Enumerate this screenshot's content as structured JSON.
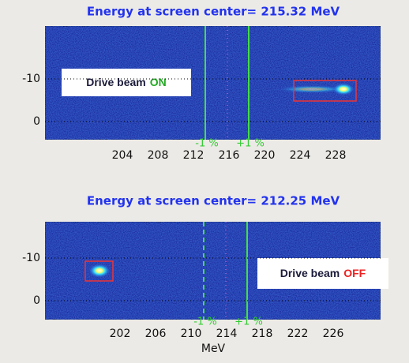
{
  "panels": [
    {
      "title": "Energy at screen center= 215.32 MeV",
      "yticks": [
        -10,
        0
      ],
      "xticks": [
        204,
        208,
        212,
        216,
        220,
        224,
        228
      ],
      "markers": [
        "-1 %",
        "+1 %"
      ],
      "label": {
        "text": "Drive beam",
        "status": "ON"
      }
    },
    {
      "title": "Energy at screen center= 212.25 MeV",
      "yticks": [
        -10,
        0
      ],
      "xticks": [
        202,
        206,
        210,
        214,
        218,
        222,
        226
      ],
      "markers": [
        "-1 %",
        "+1 %"
      ],
      "label": {
        "text": "Drive beam",
        "status": "OFF"
      },
      "xlabel": "MeV"
    }
  ]
}
